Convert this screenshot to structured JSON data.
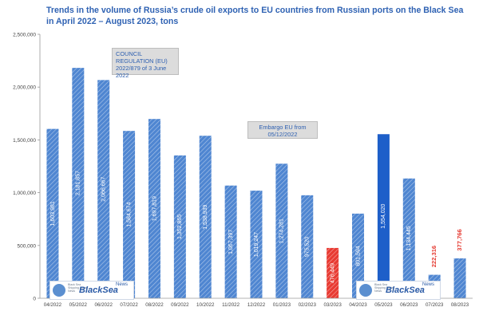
{
  "colors": {
    "bar": "#4f86d1",
    "bar_highlight": "#1e5fc9",
    "bar_red": "#e83a32",
    "label_red": "#e5382f",
    "title": "#2f62b3"
  },
  "logo": {
    "brand": "BlackSea",
    "news": "News",
    "tagline": "Black Sea Shipping Portal News"
  },
  "chart_data": {
    "type": "bar",
    "title": "Trends in the volume of Russia’s crude oil exports to EU countries from Russian ports on the Black Sea in April 2022 – August 2023, tons",
    "xlabel": "",
    "ylabel": "",
    "ylim": [
      0,
      2500000
    ],
    "y_ticks": [
      "0",
      "500,000",
      "1,000,000",
      "1,500,000",
      "2,000,000",
      "2,500,000"
    ],
    "grid": false,
    "legend": "none",
    "categories": [
      "04/2022",
      "05/2022",
      "06/2022",
      "07/2022",
      "08/2022",
      "09/2022",
      "10/2022",
      "11/2022",
      "12/2022",
      "01/2023",
      "02/2023",
      "03/2023",
      "04/2023",
      "05/2023",
      "06/2023",
      "07/2023",
      "08/2023"
    ],
    "values": [
      1603981,
      2181857,
      2066667,
      1584674,
      1697819,
      1352865,
      1538939,
      1067397,
      1019247,
      1274281,
      975520,
      476449,
      801594,
      1554020,
      1134445,
      222316,
      377766
    ],
    "value_labels": [
      "1,603,981",
      "2,181,857",
      "2,066,667",
      "1,584,674",
      "1,697,819",
      "1,352,865",
      "1,538,939",
      "1,067,397",
      "1,019,247",
      "1,274,281",
      "975,520",
      "476,449",
      "801,594",
      "1,554,020",
      "1,134,445",
      "222,316",
      "377,766"
    ],
    "bar_styles": [
      "normal",
      "normal",
      "normal",
      "normal",
      "normal",
      "normal",
      "normal",
      "normal",
      "normal",
      "normal",
      "normal",
      "red",
      "normal",
      "highlight",
      "normal",
      "normal",
      "normal"
    ],
    "label_styles": [
      "inside",
      "inside",
      "inside",
      "inside",
      "inside",
      "inside",
      "inside",
      "inside",
      "inside",
      "inside",
      "inside",
      "inside",
      "inside",
      "inside",
      "inside",
      "above-red",
      "above-red"
    ],
    "annotations": [
      "COUNCIL REGULATION (EU) 2022/879 of 3 June 2022",
      "Embargo EU from 05/12/2022"
    ]
  }
}
